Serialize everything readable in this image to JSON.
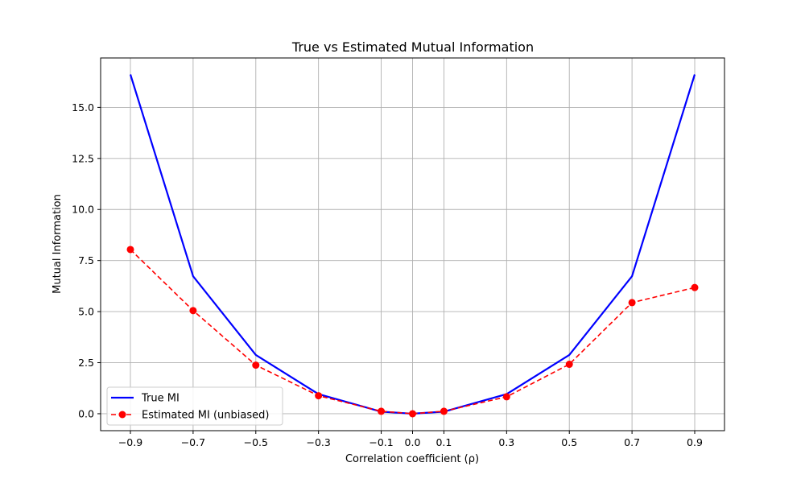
{
  "chart_data": {
    "type": "line",
    "title": "True vs Estimated Mutual Information",
    "xlabel": "Correlation coefficient (ρ)",
    "ylabel": "Mutual Information",
    "x": [
      -0.9,
      -0.7,
      -0.5,
      -0.3,
      -0.1,
      0.0,
      0.1,
      0.3,
      0.5,
      0.7,
      0.9
    ],
    "x_tick_labels": [
      "−0.9",
      "−0.7",
      "−0.5",
      "−0.3",
      "−0.1",
      "0.0",
      "0.1",
      "0.3",
      "0.5",
      "0.7",
      "0.9"
    ],
    "y_ticks": [
      0.0,
      2.5,
      5.0,
      7.5,
      10.0,
      12.5,
      15.0
    ],
    "y_tick_labels": [
      "0.0",
      "2.5",
      "5.0",
      "7.5",
      "10.0",
      "12.5",
      "15.0"
    ],
    "xlim": [
      -0.995,
      0.995
    ],
    "ylim": [
      -0.83,
      17.42
    ],
    "grid": true,
    "legend_position": "lower-left",
    "series": [
      {
        "name": "True MI",
        "color": "#0000ff",
        "style": "solid",
        "marker": "none",
        "values": [
          16.61,
          6.73,
          2.88,
          0.96,
          0.1,
          0.0,
          0.1,
          0.96,
          2.88,
          6.73,
          16.61
        ]
      },
      {
        "name": "Estimated MI (unbiased)",
        "color": "#ff0000",
        "style": "dashed",
        "marker": "circle",
        "values": [
          8.04,
          5.05,
          2.38,
          0.88,
          0.12,
          0.0,
          0.12,
          0.83,
          2.42,
          5.44,
          6.18
        ]
      }
    ]
  }
}
